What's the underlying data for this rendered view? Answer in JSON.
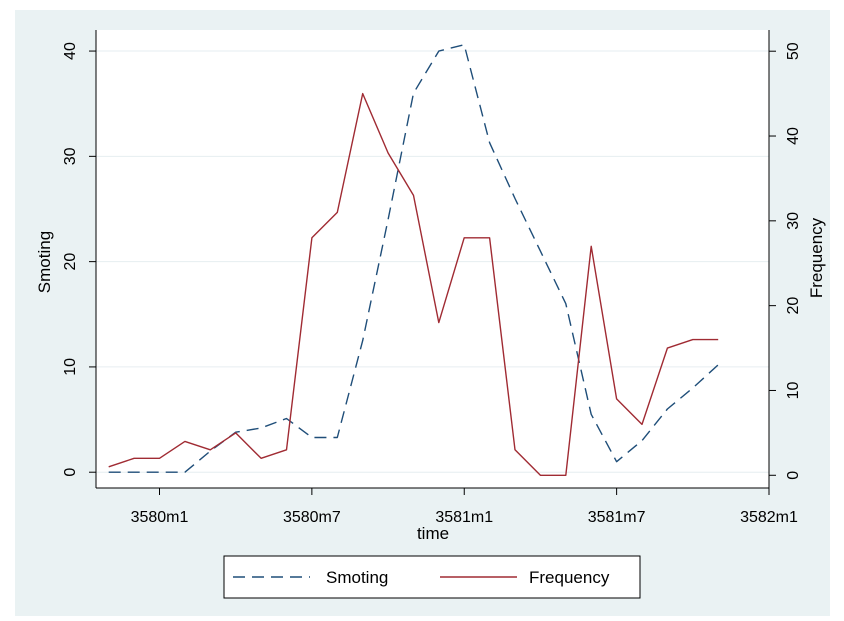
{
  "chart_data": {
    "type": "line",
    "xlabel": "time",
    "ylabel_left": "Smoting",
    "ylabel_right": "Frequency",
    "x_tick_labels": [
      "3580m1",
      "3580m7",
      "3581m1",
      "3581m7",
      "3582m1"
    ],
    "x_tick_values": [
      0,
      6,
      12,
      18,
      24
    ],
    "xlim": [
      -2.5,
      24
    ],
    "ylim_left": [
      -1.5,
      42
    ],
    "yticks_left": [
      0,
      10,
      20,
      30,
      40
    ],
    "ylim_right": [
      -1.5,
      52.5
    ],
    "yticks_right": [
      0,
      10,
      20,
      30,
      40,
      50
    ],
    "grid": true,
    "legend_position": "bottom",
    "background_color": "#eaf2f3",
    "plot_background_color": "#ffffff",
    "x": [
      -2,
      -1,
      0,
      1,
      2,
      3,
      4,
      5,
      6,
      7,
      8,
      9,
      10,
      11,
      12,
      13,
      14,
      15,
      16,
      17,
      18,
      19,
      20,
      21,
      22
    ],
    "series": [
      {
        "name": "Smoting",
        "axis": "left",
        "color": "#1f4e79",
        "dash": "dashed",
        "values": [
          0,
          0,
          0,
          0,
          2,
          3.8,
          4.2,
          5.1,
          3.3,
          3.3,
          12.5,
          24,
          36,
          40,
          40.6,
          31.3,
          26,
          21,
          16,
          5.5,
          1,
          3,
          6,
          8,
          10.2
        ]
      },
      {
        "name": "Frequency",
        "axis": "right",
        "color": "#a02b33",
        "dash": "solid",
        "values": [
          1,
          2,
          2,
          4,
          3,
          5,
          2,
          3,
          28,
          31,
          45,
          38,
          33,
          18,
          28,
          28,
          3,
          0,
          0,
          27,
          9,
          6,
          15,
          16,
          16
        ]
      }
    ]
  }
}
